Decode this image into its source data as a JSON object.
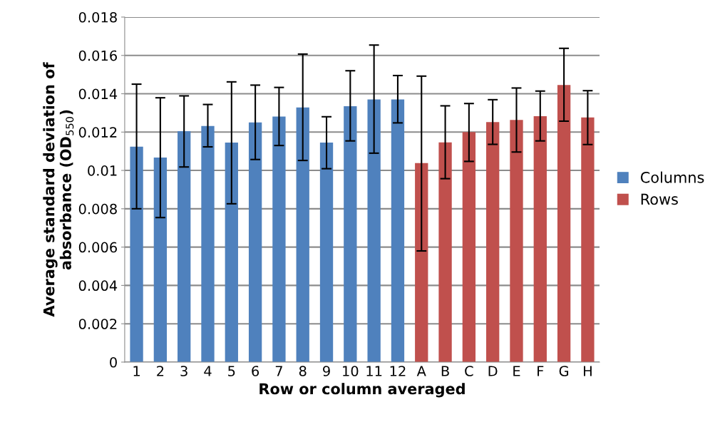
{
  "chart_data": {
    "type": "bar",
    "xlabel": "Row or column averaged",
    "ylabel": "Average standard deviation of\nabsorbance (OD$_{550}$)",
    "categories": [
      "1",
      "2",
      "3",
      "4",
      "5",
      "6",
      "7",
      "8",
      "9",
      "10",
      "11",
      "12",
      "A",
      "B",
      "C",
      "D",
      "E",
      "F",
      "G",
      "H"
    ],
    "series": [
      {
        "name": "Columns",
        "color": "#4f81bd",
        "values": [
          0.01124,
          0.01067,
          0.01205,
          0.01232,
          0.01145,
          0.0125,
          0.01281,
          0.01328,
          0.01145,
          0.01335,
          0.0137,
          0.0137,
          null,
          null,
          null,
          null,
          null,
          null,
          null,
          null
        ],
        "errors": [
          [
            0.008,
            0.0145
          ],
          [
            0.00754,
            0.01379
          ],
          [
            0.01018,
            0.01389
          ],
          [
            0.01123,
            0.01344
          ],
          [
            0.00826,
            0.01462
          ],
          [
            0.01057,
            0.01445
          ],
          [
            0.0113,
            0.01433
          ],
          [
            0.01052,
            0.01607
          ],
          [
            0.01009,
            0.0128
          ],
          [
            0.01154,
            0.0152
          ],
          [
            0.0109,
            0.01654
          ],
          [
            0.01248,
            0.01495
          ],
          null,
          null,
          null,
          null,
          null,
          null,
          null,
          null
        ]
      },
      {
        "name": "Rows",
        "color": "#c0504d",
        "values": [
          null,
          null,
          null,
          null,
          null,
          null,
          null,
          null,
          null,
          null,
          null,
          null,
          0.01038,
          0.01146,
          0.012,
          0.01252,
          0.01263,
          0.01283,
          0.01446,
          0.01276
        ],
        "errors": [
          null,
          null,
          null,
          null,
          null,
          null,
          null,
          null,
          null,
          null,
          null,
          null,
          [
            0.0058,
            0.01492
          ],
          [
            0.00957,
            0.01337
          ],
          [
            0.01047,
            0.01349
          ],
          [
            0.01136,
            0.01369
          ],
          [
            0.01096,
            0.0143
          ],
          [
            0.01154,
            0.01414
          ],
          [
            0.01257,
            0.01637
          ],
          [
            0.01135,
            0.01416
          ]
        ]
      }
    ],
    "ylim": [
      0,
      0.018
    ],
    "yticks": [
      {
        "value": 0,
        "label": "0"
      },
      0.002,
      0.004,
      0.006,
      0.008,
      0.01,
      0.012,
      0.014,
      0.016,
      0.018
    ],
    "grid": "y",
    "legend": "right"
  }
}
